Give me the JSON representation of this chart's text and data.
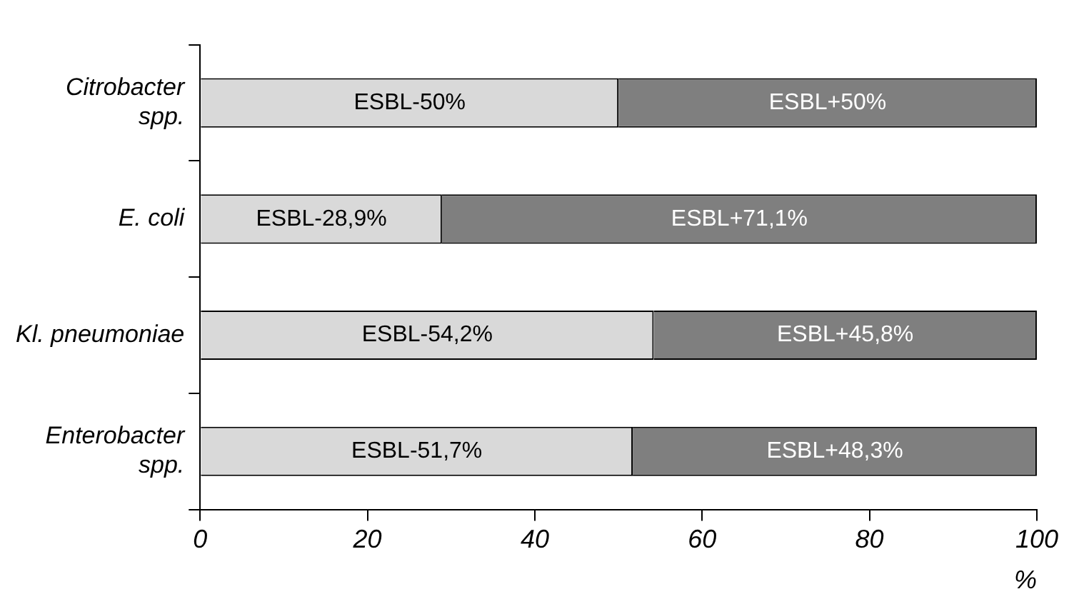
{
  "chart_data": {
    "type": "bar",
    "orientation": "horizontal",
    "stacked": true,
    "categories": [
      "Citrobacter spp.",
      "E. coli",
      "Kl. pneumoniae",
      "Enterobacter spp."
    ],
    "series": [
      {
        "color": "#d9d9d9",
        "values": [
          50,
          28.9,
          54.2,
          51.7
        ],
        "value_labels": [
          "ESBL-50%",
          "ESBL-28,9%",
          "ESBL-54,2%",
          "ESBL-51,7%"
        ]
      },
      {
        "color": "#7f7f7f",
        "values": [
          50,
          71.1,
          45.8,
          48.3
        ],
        "value_labels": [
          "ESBL+50%",
          "ESBL+71,1%",
          "ESBL+45,8%",
          "ESBL+48,3%"
        ]
      }
    ],
    "xlabel": "%",
    "xlim": [
      0,
      100
    ],
    "xticks": [
      0,
      20,
      40,
      60,
      80,
      100
    ],
    "grid": false,
    "legend": false
  }
}
